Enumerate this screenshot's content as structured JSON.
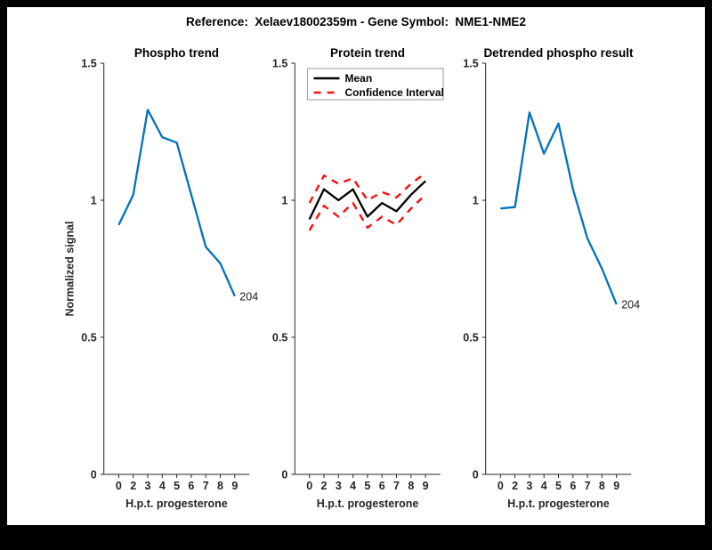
{
  "figure": {
    "title": "Reference:  Xelaev18002359m - Gene Symbol:  NME1-NME2",
    "frame_color": "#000000",
    "background_color": "#ffffff"
  },
  "chart_data": [
    {
      "type": "line",
      "title": "Phospho trend",
      "xlabel": "H.p.t. progesterone",
      "ylabel": "Normalized signal",
      "x_tick_labels": [
        "0",
        "2",
        "3",
        "4",
        "5",
        "6",
        "7",
        "8",
        "9"
      ],
      "x_values": [
        0,
        2,
        3,
        4,
        5,
        6,
        7,
        8,
        9
      ],
      "yticks": [
        "0",
        "0.5",
        "1",
        "1.5"
      ],
      "ylim": [
        0,
        1.5
      ],
      "grid": false,
      "series": [
        {
          "name": "Phospho trend",
          "color": "#0072BD",
          "style": "solid",
          "values": [
            0.91,
            1.02,
            1.33,
            1.23,
            1.21,
            1.02,
            0.83,
            0.77,
            0.65
          ]
        }
      ],
      "annotation": {
        "text": "204",
        "at_index": 8
      }
    },
    {
      "type": "line",
      "title": "Protein trend",
      "xlabel": "H.p.t. progesterone",
      "ylabel": "",
      "x_tick_labels": [
        "0",
        "2",
        "3",
        "4",
        "5",
        "6",
        "7",
        "8",
        "9"
      ],
      "x_values": [
        0,
        2,
        3,
        4,
        5,
        6,
        7,
        8,
        9
      ],
      "yticks": [
        "0",
        "0.5",
        "1",
        "1.5"
      ],
      "ylim": [
        0,
        1.5
      ],
      "grid": false,
      "legend": {
        "position": "top-left",
        "entries": [
          {
            "label": "Mean",
            "color": "#000000",
            "style": "solid"
          },
          {
            "label": "Confidence Interval",
            "color": "#fa0f0f",
            "style": "dashed"
          }
        ]
      },
      "series": [
        {
          "name": "Mean",
          "color": "#000000",
          "style": "solid",
          "values": [
            0.93,
            1.04,
            1.0,
            1.04,
            0.94,
            0.99,
            0.96,
            1.02,
            1.07
          ]
        },
        {
          "name": "Confidence Interval upper",
          "color": "#fa0f0f",
          "style": "dashed",
          "values": [
            0.99,
            1.09,
            1.06,
            1.08,
            1.0,
            1.03,
            1.01,
            1.06,
            1.1
          ]
        },
        {
          "name": "Confidence Interval lower",
          "color": "#fa0f0f",
          "style": "dashed",
          "values": [
            0.89,
            0.98,
            0.94,
            0.99,
            0.9,
            0.94,
            0.91,
            0.97,
            1.02
          ]
        }
      ]
    },
    {
      "type": "line",
      "title": "Detrended phospho result",
      "xlabel": "H.p.t. progesterone",
      "ylabel": "",
      "x_tick_labels": [
        "0",
        "2",
        "3",
        "4",
        "5",
        "6",
        "7",
        "8",
        "9"
      ],
      "x_values": [
        0,
        2,
        3,
        4,
        5,
        6,
        7,
        8,
        9
      ],
      "yticks": [
        "0",
        "0.5",
        "1",
        "1.5"
      ],
      "ylim": [
        0,
        1.5
      ],
      "grid": false,
      "series": [
        {
          "name": "Detrended phospho",
          "color": "#0072BD",
          "style": "solid",
          "values": [
            0.97,
            0.975,
            1.32,
            1.17,
            1.28,
            1.04,
            0.86,
            0.75,
            0.62
          ]
        }
      ],
      "annotation": {
        "text": "204",
        "at_index": 8
      }
    }
  ]
}
